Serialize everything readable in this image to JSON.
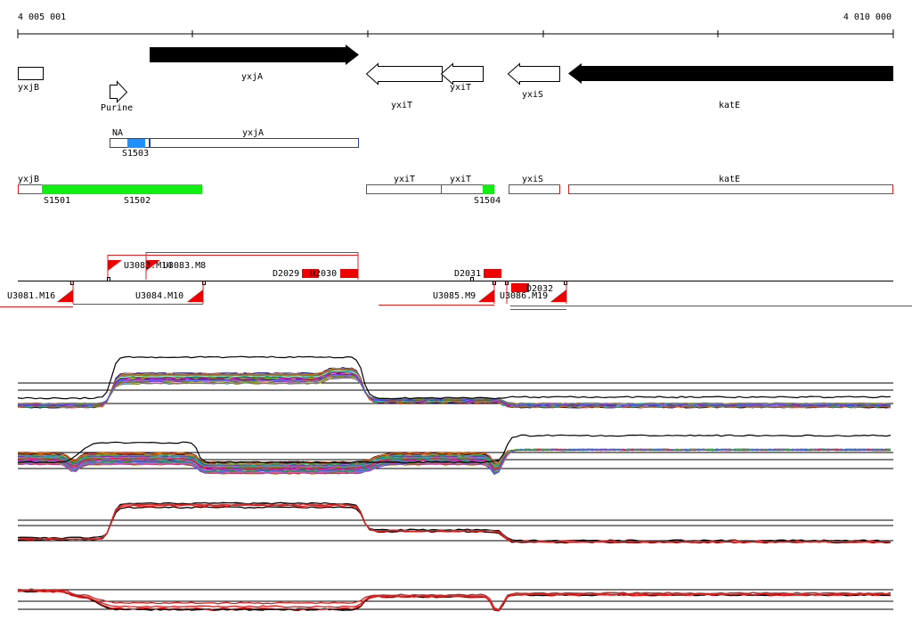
{
  "coordinates": {
    "start": "4 005 001",
    "end": "4 010 000"
  },
  "genes": {
    "yxjB": "yxjB",
    "purine": "Purine",
    "yxjA": "yxjA",
    "yxiT_1": "yxiT",
    "yxiT_2": "yxiT",
    "yxiS": "yxiS",
    "katE": "katE"
  },
  "blue_track": {
    "na": "NA",
    "yxjA": "yxjA",
    "s1503": "S1503"
  },
  "red_track": {
    "yxjB": "yxjB",
    "yxiT_1": "yxiT",
    "yxiT_2": "yxiT",
    "yxiS": "yxiS",
    "katE": "katE",
    "s1501": "S1501",
    "s1502": "S1502",
    "s1504": "S1504"
  },
  "segments": {
    "u3083_m14": "U3083.M14",
    "u3083_m8": "U3083.M8",
    "d2029": "D2029",
    "d2030": "D2030",
    "d2031": "D2031",
    "d2032": "D2032",
    "u3081_m16": "U3081.M16",
    "u3084_m10": "U3084.M10",
    "u3085_m9": "U3085.M9",
    "u3086_m19": "U3086.M19"
  },
  "colors": {
    "gene_fill": "#000000",
    "blue_outline": "#1f3fbf",
    "blue_fill": "#1e90ff",
    "red_outline": "#e02020",
    "green_fill": "#11ee11",
    "segment_red": "#ee0000"
  }
}
